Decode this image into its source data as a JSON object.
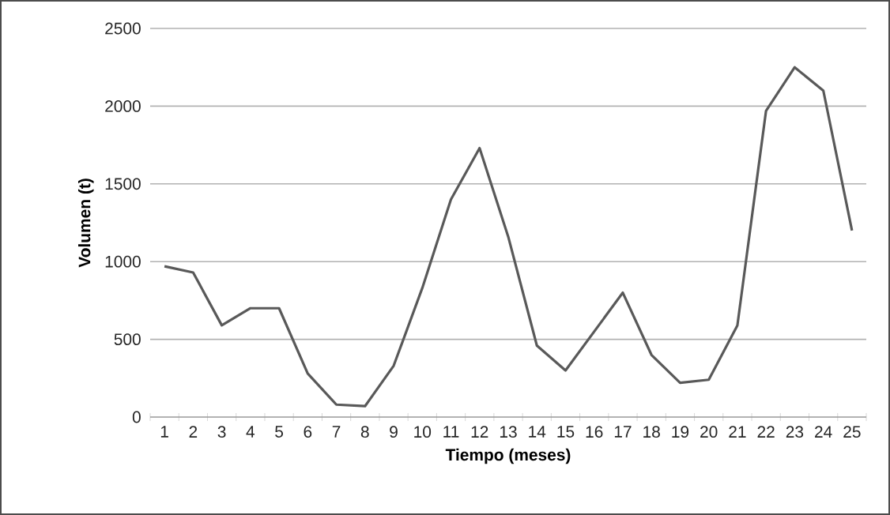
{
  "chart_data": {
    "type": "line",
    "xlabel": "Tiempo (meses)",
    "ylabel": "Volumen (t)",
    "categories": [
      "1",
      "2",
      "3",
      "4",
      "5",
      "6",
      "7",
      "8",
      "9",
      "10",
      "11",
      "12",
      "13",
      "14",
      "15",
      "16",
      "17",
      "18",
      "19",
      "20",
      "21",
      "22",
      "23",
      "24",
      "25"
    ],
    "series": [
      {
        "color": "#595959",
        "values": [
          970,
          930,
          590,
          700,
          700,
          280,
          80,
          70,
          330,
          830,
          1400,
          1730,
          1160,
          460,
          300,
          550,
          800,
          400,
          220,
          240,
          590,
          1970,
          2250,
          2100,
          1200
        ]
      }
    ],
    "ylim": [
      0,
      2500
    ],
    "yticks": [
      0,
      500,
      1000,
      1500,
      2000,
      2500
    ],
    "grid": "y",
    "marker": "none",
    "line_style": "solid"
  }
}
